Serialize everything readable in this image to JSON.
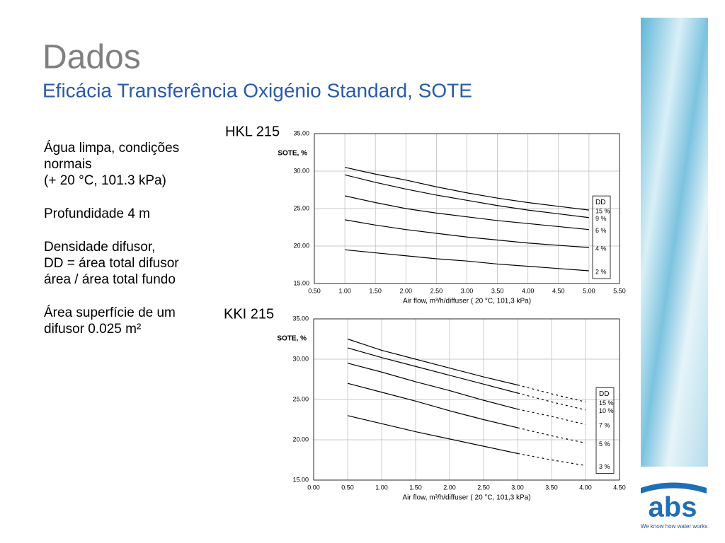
{
  "title": "Dados",
  "subtitle": "Eficácia Transferência Oxigénio Standard, SOTE",
  "notes": [
    [
      "Água limpa, condições",
      "normais",
      "(+ 20 °C, 101.3 kPa)"
    ],
    [
      "Profundidade 4 m"
    ],
    [
      "Densidade difusor,",
      "DD = área total difusor",
      "área / área total fundo"
    ],
    [
      "Área superfície de um",
      "difusor 0.025 m²"
    ]
  ],
  "logo": {
    "name": "abs",
    "tagline": "We know how water works"
  },
  "chart_data": [
    {
      "type": "line",
      "title": "HKL 215",
      "y_label": "SOTE, %",
      "x_label": "Air flow, m³/h/diffuser ( 20 °C,   101,3 kPa)",
      "legend_title": "DD",
      "x": [
        1.0,
        1.5,
        2.0,
        2.5,
        3.0,
        3.5,
        4.0,
        4.5,
        5.0
      ],
      "xlim": [
        0.5,
        5.5
      ],
      "xticks": [
        {
          "value": 0.5,
          "label": "0.50"
        },
        {
          "value": 1.0,
          "label": "1.00"
        },
        {
          "value": 1.5,
          "label": "1.50"
        },
        {
          "value": 2.0,
          "label": "2.00"
        },
        {
          "value": 2.5,
          "label": "2.50"
        },
        {
          "value": 3.0,
          "label": "3.00"
        },
        {
          "value": 3.5,
          "label": "3.50"
        },
        {
          "value": 4.0,
          "label": "4.00"
        },
        {
          "value": 4.5,
          "label": "4.50"
        },
        {
          "value": 5.0,
          "label": "5.00"
        },
        {
          "value": 5.5,
          "label": "5.50"
        }
      ],
      "ylim": [
        15,
        35
      ],
      "yticks": [
        {
          "value": 15,
          "label": "15.00"
        },
        {
          "value": 20,
          "label": "20.00"
        },
        {
          "value": 25,
          "label": "25.00"
        },
        {
          "value": 30,
          "label": "30.00"
        },
        {
          "value": 35,
          "label": "35.00"
        }
      ],
      "grid": true,
      "series": [
        {
          "name": "15 %",
          "color": "#000000",
          "values": [
            30.5,
            29.6,
            28.8,
            27.9,
            27.1,
            26.4,
            25.8,
            25.3,
            24.8
          ]
        },
        {
          "name": "9 %",
          "color": "#000000",
          "values": [
            29.5,
            28.5,
            27.6,
            26.8,
            26.1,
            25.4,
            24.8,
            24.3,
            23.8
          ]
        },
        {
          "name": "6 %",
          "color": "#000000",
          "values": [
            26.7,
            25.8,
            25.0,
            24.4,
            23.9,
            23.4,
            23.0,
            22.6,
            22.2
          ]
        },
        {
          "name": "4 %",
          "color": "#000000",
          "values": [
            23.5,
            22.8,
            22.2,
            21.7,
            21.2,
            20.8,
            20.4,
            20.1,
            19.8
          ]
        },
        {
          "name": "2 %",
          "color": "#000000",
          "values": [
            19.5,
            19.1,
            18.7,
            18.3,
            18.0,
            17.6,
            17.3,
            17.0,
            16.7
          ]
        }
      ]
    },
    {
      "type": "line",
      "title": "KKI 215",
      "y_label": "SOTE, %",
      "x_label": "Air flow, m³/h/diffuser ( 20 °C,   101,3 kPa)",
      "legend_title": "DD",
      "x": [
        0.5,
        1.0,
        1.5,
        2.0,
        2.5,
        3.0,
        3.5,
        4.0
      ],
      "dashed_from_x": 3.0,
      "xlim": [
        0,
        4.5
      ],
      "xticks": [
        {
          "value": 0,
          "label": "0.00"
        },
        {
          "value": 0.5,
          "label": "0.50"
        },
        {
          "value": 1.0,
          "label": "1.00"
        },
        {
          "value": 1.5,
          "label": "1.50"
        },
        {
          "value": 2.0,
          "label": "2.00"
        },
        {
          "value": 2.5,
          "label": "2.50"
        },
        {
          "value": 3.0,
          "label": "3.00"
        },
        {
          "value": 3.5,
          "label": "3.50"
        },
        {
          "value": 4.0,
          "label": "4.00"
        },
        {
          "value": 4.5,
          "label": "4.50"
        }
      ],
      "ylim": [
        15,
        35
      ],
      "yticks": [
        {
          "value": 15,
          "label": "15.00"
        },
        {
          "value": 20,
          "label": "20.00"
        },
        {
          "value": 25,
          "label": "25.00"
        },
        {
          "value": 30,
          "label": "30.00"
        },
        {
          "value": 35,
          "label": "35.00"
        }
      ],
      "grid": true,
      "series": [
        {
          "name": "15 %",
          "color": "#000000",
          "values": [
            32.5,
            31.1,
            30.0,
            28.9,
            27.8,
            26.8,
            25.7,
            24.7
          ]
        },
        {
          "name": "10 %",
          "color": "#000000",
          "values": [
            31.4,
            30.2,
            29.1,
            28.0,
            26.9,
            25.8,
            24.7,
            23.7
          ]
        },
        {
          "name": "7 %",
          "color": "#000000",
          "values": [
            29.5,
            28.4,
            27.2,
            26.1,
            24.9,
            23.8,
            22.9,
            21.9
          ]
        },
        {
          "name": "5 %",
          "color": "#000000",
          "values": [
            27.0,
            25.9,
            24.8,
            23.6,
            22.5,
            21.5,
            20.5,
            19.6
          ]
        },
        {
          "name": "3 %",
          "color": "#000000",
          "values": [
            23.0,
            22.0,
            21.0,
            20.1,
            19.2,
            18.3,
            17.5,
            16.8
          ]
        }
      ]
    }
  ]
}
